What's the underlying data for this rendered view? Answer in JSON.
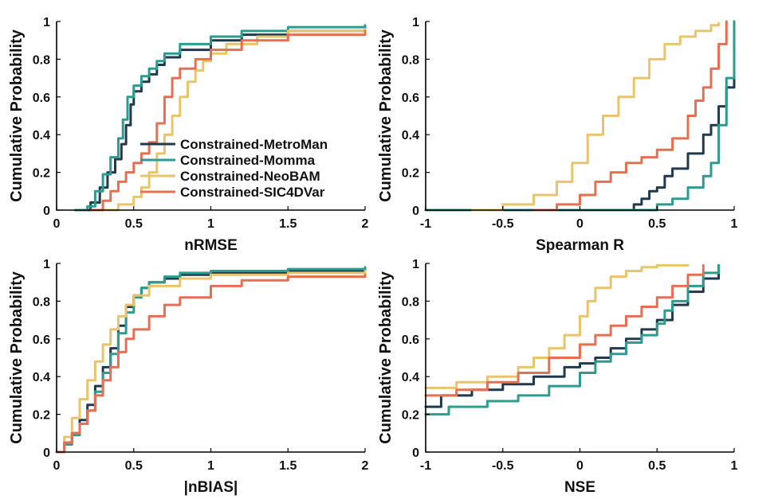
{
  "colors": {
    "MetroMan": "#1e3a4c",
    "Momma": "#2a9d8f",
    "NeoBAM": "#e9c46a",
    "SIC4DVar": "#e76f51"
  },
  "legend": [
    {
      "key": "MetroMan",
      "label": "Constrained-MetroMan"
    },
    {
      "key": "Momma",
      "label": "Constrained-Momma"
    },
    {
      "key": "NeoBAM",
      "label": "Constrained-NeoBAM"
    },
    {
      "key": "SIC4DVar",
      "label": "Constrained-SIC4DVar"
    }
  ],
  "chart_data": [
    {
      "type": "line",
      "id": "nrmse",
      "title": "",
      "xlabel": "nRMSE",
      "ylabel": "Cumulative Probability",
      "xlim": [
        0,
        2
      ],
      "ylim": [
        0,
        1
      ],
      "xticks": [
        0,
        0.5,
        1,
        1.5,
        2
      ],
      "xtick_labels": [
        "0",
        "0.5",
        "1",
        "1.5",
        "2"
      ],
      "yticks": [
        0,
        0.2,
        0.4,
        0.6,
        0.8,
        1
      ],
      "ytick_labels": [
        "0",
        "0.2",
        "0.4",
        "0.6",
        "0.8",
        "1"
      ],
      "legend_position": "center",
      "series": [
        {
          "name": "Constrained-MetroMan",
          "key": "MetroMan",
          "x": [
            0.15,
            0.22,
            0.28,
            0.33,
            0.38,
            0.42,
            0.45,
            0.48,
            0.5,
            0.55,
            0.6,
            0.65,
            0.7,
            0.8,
            1.0,
            1.2,
            1.5,
            2.0
          ],
          "y": [
            0,
            0.04,
            0.12,
            0.2,
            0.27,
            0.35,
            0.45,
            0.56,
            0.63,
            0.68,
            0.72,
            0.77,
            0.81,
            0.85,
            0.9,
            0.93,
            0.95,
            0.97
          ]
        },
        {
          "name": "Constrained-Momma",
          "key": "Momma",
          "x": [
            0.12,
            0.2,
            0.25,
            0.3,
            0.35,
            0.4,
            0.43,
            0.46,
            0.5,
            0.55,
            0.6,
            0.65,
            0.7,
            0.8,
            1.0,
            1.2,
            1.5,
            2.0
          ],
          "y": [
            0,
            0.02,
            0.1,
            0.19,
            0.28,
            0.38,
            0.48,
            0.6,
            0.66,
            0.71,
            0.75,
            0.79,
            0.83,
            0.88,
            0.92,
            0.95,
            0.97,
            0.98
          ]
        },
        {
          "name": "Constrained-NeoBAM",
          "key": "NeoBAM",
          "x": [
            0.3,
            0.4,
            0.5,
            0.55,
            0.6,
            0.65,
            0.7,
            0.75,
            0.8,
            0.85,
            0.9,
            0.95,
            1.0,
            1.1,
            1.3,
            1.5,
            2.0
          ],
          "y": [
            0,
            0.03,
            0.07,
            0.12,
            0.2,
            0.3,
            0.4,
            0.5,
            0.6,
            0.68,
            0.74,
            0.79,
            0.83,
            0.88,
            0.92,
            0.95,
            0.96
          ]
        },
        {
          "name": "Constrained-SIC4DVar",
          "key": "SIC4DVar",
          "x": [
            0.22,
            0.3,
            0.35,
            0.4,
            0.45,
            0.5,
            0.55,
            0.6,
            0.65,
            0.7,
            0.75,
            0.8,
            0.9,
            1.0,
            1.2,
            1.5,
            2.0
          ],
          "y": [
            0,
            0.05,
            0.1,
            0.15,
            0.2,
            0.25,
            0.3,
            0.36,
            0.46,
            0.6,
            0.7,
            0.75,
            0.8,
            0.85,
            0.9,
            0.93,
            0.95
          ]
        }
      ]
    },
    {
      "type": "line",
      "id": "spearman",
      "title": "",
      "xlabel": "Spearman R",
      "ylabel": "Cumulative Probability",
      "xlim": [
        -1,
        1
      ],
      "ylim": [
        0,
        1
      ],
      "xticks": [
        -1,
        -0.5,
        0,
        0.5,
        1
      ],
      "xtick_labels": [
        "-1",
        "-0.5",
        "0",
        "0.5",
        "1"
      ],
      "yticks": [
        0,
        0.2,
        0.4,
        0.6,
        0.8,
        1
      ],
      "ytick_labels": [
        "0",
        "0.2",
        "0.4",
        "0.6",
        "0.8",
        "1"
      ],
      "series": [
        {
          "name": "Constrained-MetroMan",
          "key": "MetroMan",
          "x": [
            -1,
            0.3,
            0.35,
            0.4,
            0.45,
            0.5,
            0.55,
            0.6,
            0.7,
            0.8,
            0.85,
            0.9,
            0.95,
            1.0
          ],
          "y": [
            0,
            0,
            0.03,
            0.06,
            0.1,
            0.12,
            0.18,
            0.22,
            0.3,
            0.4,
            0.45,
            0.55,
            0.65,
            1.0
          ]
        },
        {
          "name": "Constrained-Momma",
          "key": "Momma",
          "x": [
            -1,
            0.45,
            0.5,
            0.6,
            0.7,
            0.8,
            0.85,
            0.9,
            0.95,
            1.0
          ],
          "y": [
            0,
            0,
            0.03,
            0.06,
            0.12,
            0.18,
            0.25,
            0.45,
            0.7,
            1.0
          ]
        },
        {
          "name": "Constrained-NeoBAM",
          "key": "NeoBAM",
          "x": [
            -0.7,
            -0.5,
            -0.3,
            -0.15,
            -0.05,
            0.05,
            0.15,
            0.25,
            0.35,
            0.45,
            0.55,
            0.65,
            0.75,
            0.85,
            0.9
          ],
          "y": [
            0,
            0.03,
            0.08,
            0.15,
            0.25,
            0.4,
            0.5,
            0.6,
            0.7,
            0.8,
            0.88,
            0.92,
            0.95,
            0.98,
            0.99
          ]
        },
        {
          "name": "Constrained-SIC4DVar",
          "key": "SIC4DVar",
          "x": [
            -0.3,
            -0.15,
            0,
            0.1,
            0.2,
            0.3,
            0.4,
            0.5,
            0.6,
            0.7,
            0.75,
            0.8,
            0.85,
            0.9,
            0.95
          ],
          "y": [
            0,
            0.03,
            0.08,
            0.15,
            0.2,
            0.25,
            0.28,
            0.32,
            0.38,
            0.5,
            0.58,
            0.65,
            0.75,
            0.88,
            1.0
          ]
        }
      ]
    },
    {
      "type": "line",
      "id": "nbias",
      "title": "",
      "xlabel": "|nBIAS|",
      "ylabel": "Cumulative Probability",
      "xlim": [
        0,
        2
      ],
      "ylim": [
        0,
        1
      ],
      "xticks": [
        0,
        0.5,
        1,
        1.5,
        2
      ],
      "xtick_labels": [
        "0",
        "0.5",
        "1",
        "1.5",
        "2"
      ],
      "yticks": [
        0,
        0.2,
        0.4,
        0.6,
        0.8,
        1
      ],
      "ytick_labels": [
        "0",
        "0.2",
        "0.4",
        "0.6",
        "0.8",
        "1"
      ],
      "series": [
        {
          "name": "Constrained-MetroMan",
          "key": "MetroMan",
          "x": [
            0,
            0.05,
            0.1,
            0.15,
            0.2,
            0.25,
            0.3,
            0.35,
            0.4,
            0.45,
            0.5,
            0.55,
            0.6,
            0.7,
            0.8,
            1.0,
            1.5,
            2.0
          ],
          "y": [
            0,
            0.05,
            0.1,
            0.17,
            0.25,
            0.35,
            0.45,
            0.55,
            0.67,
            0.77,
            0.83,
            0.87,
            0.9,
            0.92,
            0.94,
            0.95,
            0.96,
            0.97
          ]
        },
        {
          "name": "Constrained-Momma",
          "key": "Momma",
          "x": [
            0,
            0.05,
            0.1,
            0.15,
            0.2,
            0.25,
            0.3,
            0.35,
            0.4,
            0.45,
            0.5,
            0.55,
            0.6,
            0.7,
            0.8,
            1.0,
            1.5,
            2.0
          ],
          "y": [
            0,
            0.04,
            0.09,
            0.15,
            0.22,
            0.32,
            0.42,
            0.52,
            0.63,
            0.74,
            0.82,
            0.87,
            0.9,
            0.93,
            0.95,
            0.96,
            0.97,
            0.98
          ]
        },
        {
          "name": "Constrained-NeoBAM",
          "key": "NeoBAM",
          "x": [
            0,
            0.05,
            0.1,
            0.15,
            0.2,
            0.25,
            0.3,
            0.35,
            0.4,
            0.45,
            0.5,
            0.6,
            0.8,
            1.0,
            1.5,
            2.0
          ],
          "y": [
            0,
            0.08,
            0.18,
            0.28,
            0.38,
            0.48,
            0.57,
            0.65,
            0.72,
            0.78,
            0.83,
            0.88,
            0.92,
            0.94,
            0.95,
            0.96
          ]
        },
        {
          "name": "Constrained-SIC4DVar",
          "key": "SIC4DVar",
          "x": [
            0,
            0.05,
            0.1,
            0.15,
            0.2,
            0.25,
            0.3,
            0.35,
            0.4,
            0.45,
            0.5,
            0.6,
            0.7,
            0.8,
            1.0,
            1.2,
            1.5,
            2.0
          ],
          "y": [
            0,
            0.05,
            0.1,
            0.15,
            0.22,
            0.3,
            0.38,
            0.45,
            0.53,
            0.6,
            0.65,
            0.72,
            0.78,
            0.82,
            0.88,
            0.91,
            0.93,
            0.94
          ]
        }
      ]
    },
    {
      "type": "line",
      "id": "nse",
      "title": "",
      "xlabel": "NSE",
      "ylabel": "Cumulative Probability",
      "xlim": [
        -1,
        1
      ],
      "ylim": [
        0,
        1
      ],
      "xticks": [
        -1,
        -0.5,
        0,
        0.5,
        1
      ],
      "xtick_labels": [
        "-1",
        "-0.5",
        "0",
        "0.5",
        "1"
      ],
      "yticks": [
        0,
        0.2,
        0.4,
        0.6,
        0.8,
        1
      ],
      "ytick_labels": [
        "0",
        "0.2",
        "0.4",
        "0.6",
        "0.8",
        "1"
      ],
      "series": [
        {
          "name": "Constrained-MetroMan",
          "key": "MetroMan",
          "x": [
            -1,
            -0.9,
            -0.7,
            -0.5,
            -0.3,
            -0.1,
            0.0,
            0.1,
            0.2,
            0.3,
            0.4,
            0.5,
            0.6,
            0.7,
            0.8,
            0.9
          ],
          "y": [
            0.24,
            0.3,
            0.33,
            0.36,
            0.4,
            0.45,
            0.47,
            0.5,
            0.55,
            0.6,
            0.65,
            0.7,
            0.78,
            0.85,
            0.92,
            0.99
          ]
        },
        {
          "name": "Constrained-Momma",
          "key": "Momma",
          "x": [
            -1,
            -0.85,
            -0.6,
            -0.4,
            -0.2,
            0.0,
            0.1,
            0.2,
            0.3,
            0.4,
            0.5,
            0.55,
            0.6,
            0.7,
            0.8,
            0.9
          ],
          "y": [
            0.2,
            0.24,
            0.27,
            0.3,
            0.35,
            0.42,
            0.48,
            0.52,
            0.58,
            0.62,
            0.68,
            0.75,
            0.8,
            0.88,
            0.95,
            0.99
          ]
        },
        {
          "name": "Constrained-NeoBAM",
          "key": "NeoBAM",
          "x": [
            -1,
            -0.8,
            -0.6,
            -0.4,
            -0.3,
            -0.2,
            -0.1,
            0.0,
            0.05,
            0.1,
            0.2,
            0.3,
            0.4,
            0.5,
            0.6,
            0.7
          ],
          "y": [
            0.34,
            0.37,
            0.4,
            0.45,
            0.5,
            0.55,
            0.62,
            0.72,
            0.8,
            0.87,
            0.93,
            0.96,
            0.98,
            0.99,
            0.99,
            0.99
          ]
        },
        {
          "name": "Constrained-SIC4DVar",
          "key": "SIC4DVar",
          "x": [
            -1,
            -0.8,
            -0.6,
            -0.4,
            -0.2,
            0.0,
            0.1,
            0.2,
            0.3,
            0.4,
            0.5,
            0.6,
            0.7,
            0.8
          ],
          "y": [
            0.3,
            0.33,
            0.37,
            0.42,
            0.5,
            0.57,
            0.62,
            0.67,
            0.72,
            0.77,
            0.82,
            0.88,
            0.94,
            0.99
          ]
        }
      ]
    }
  ]
}
